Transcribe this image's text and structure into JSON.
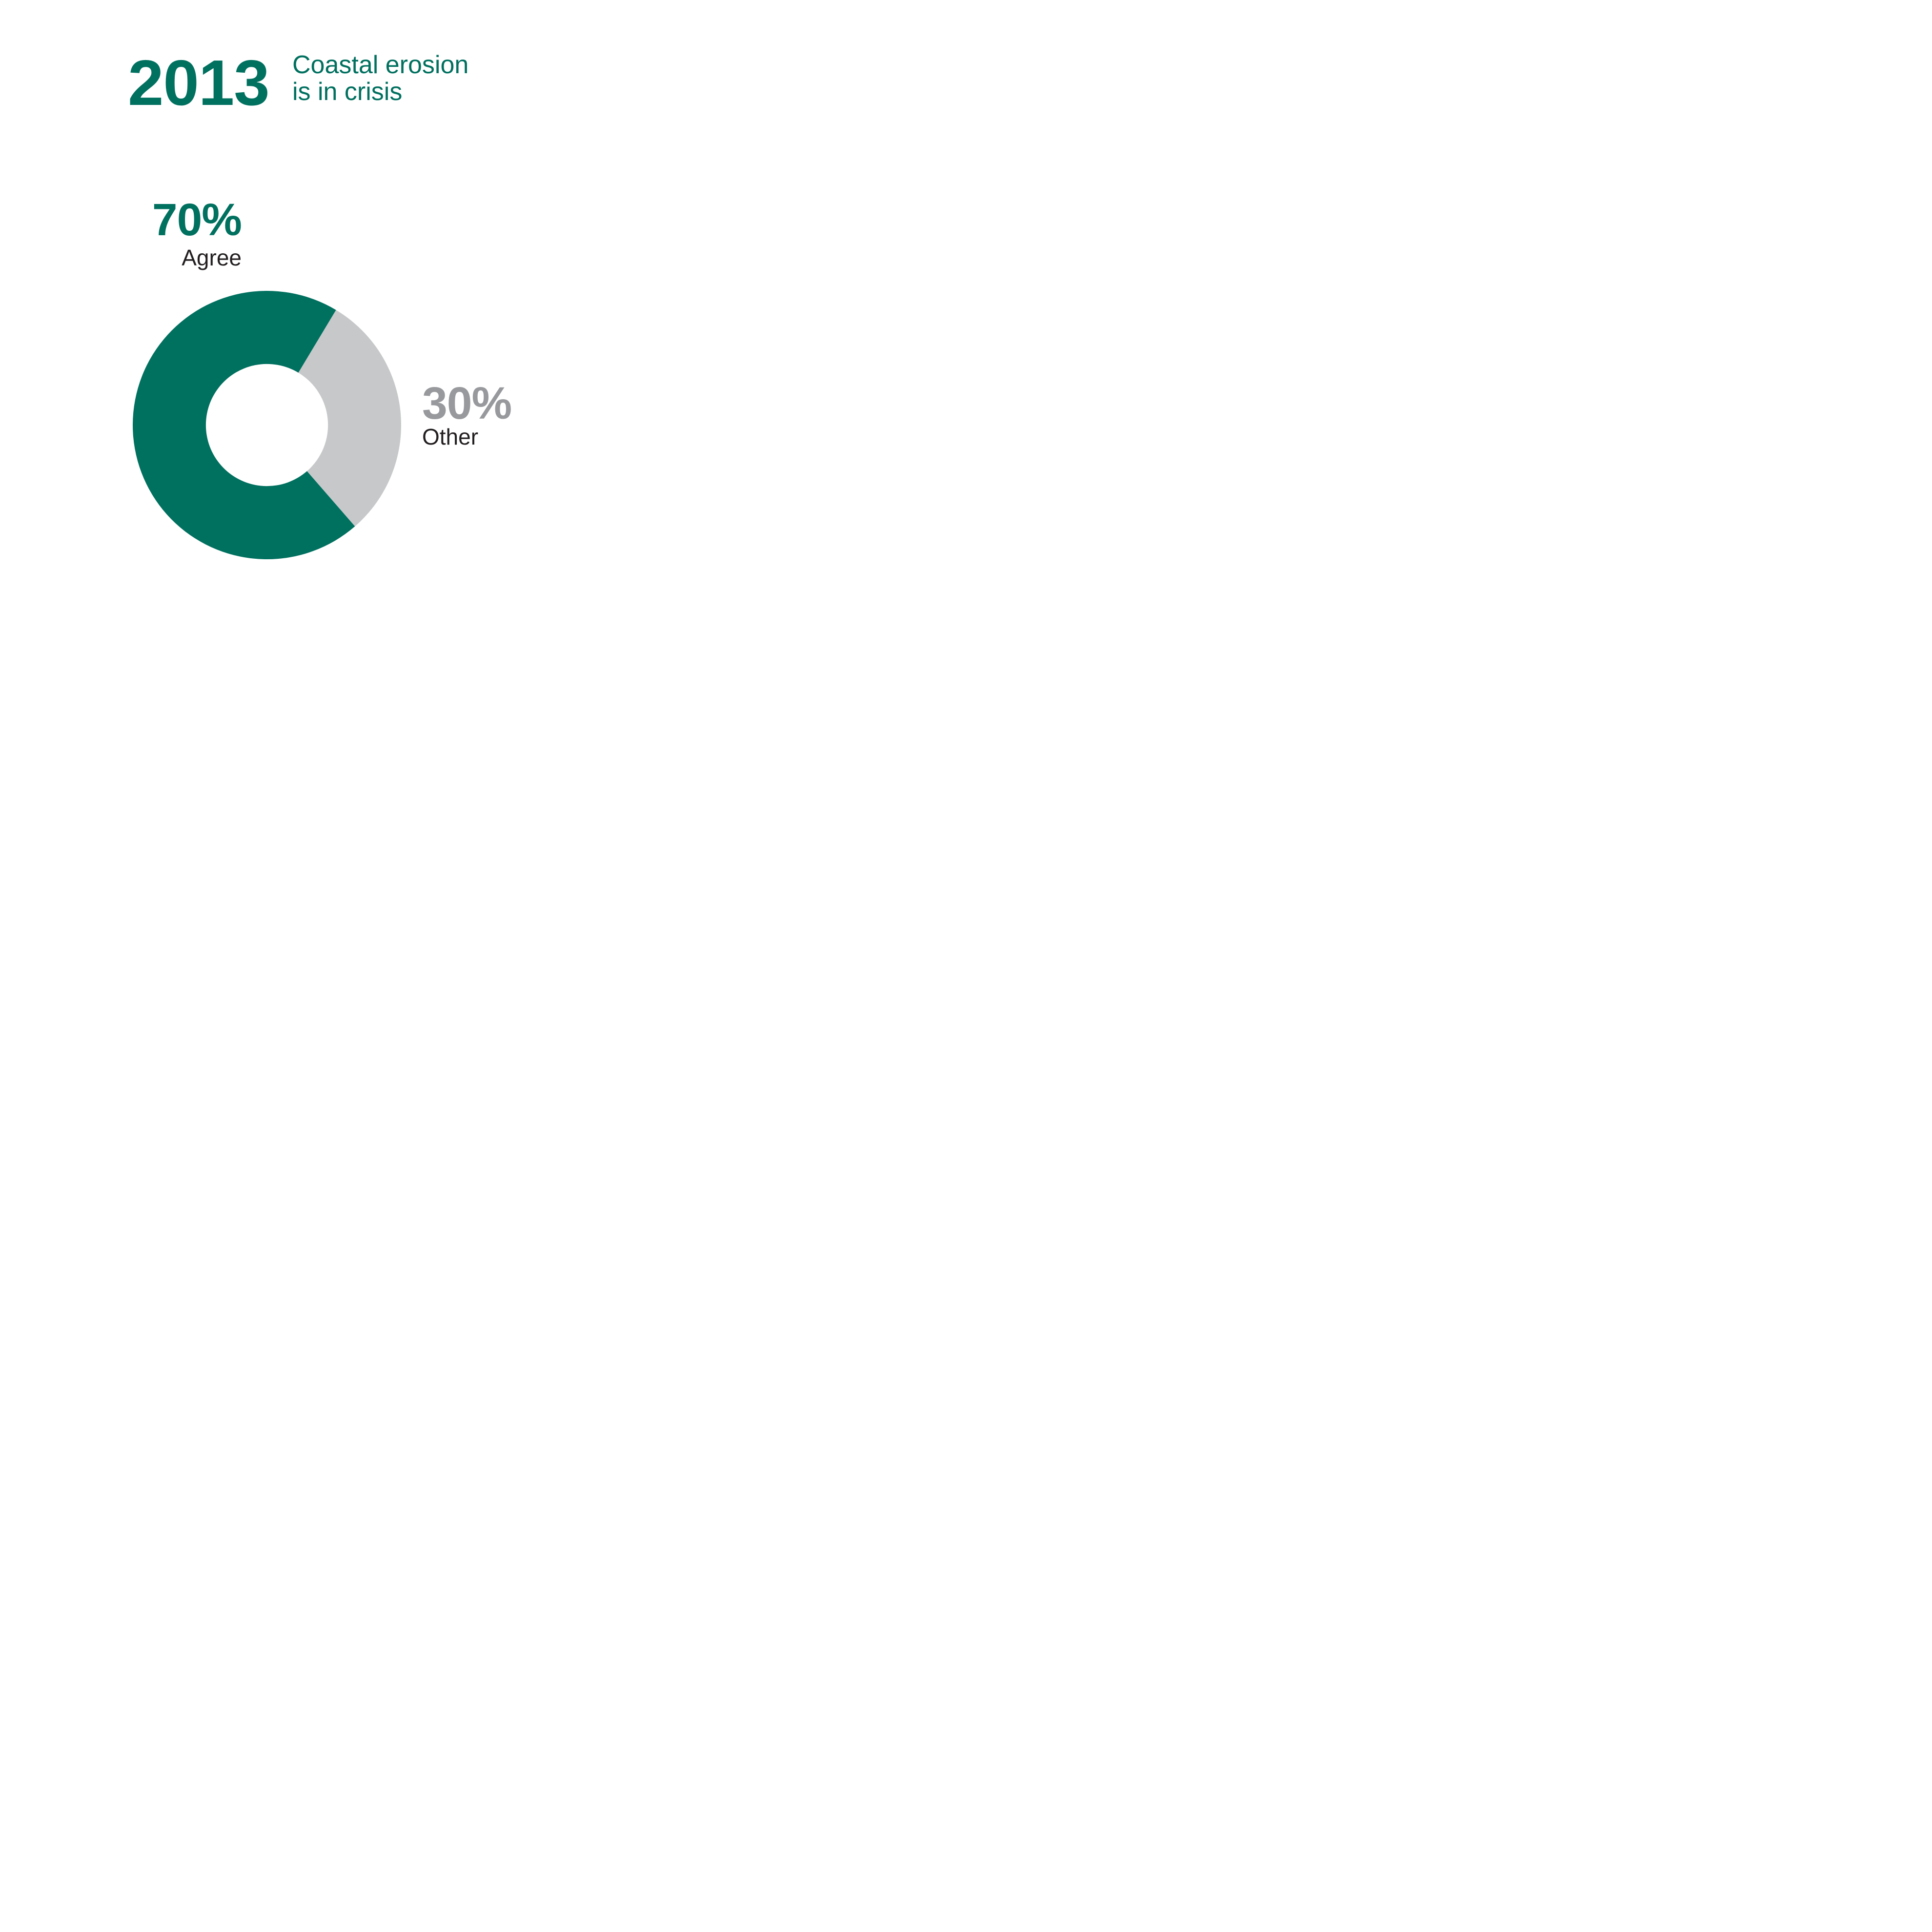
{
  "page": {
    "background": "#FFFFFF"
  },
  "colors": {
    "bg": "#FFFFFF",
    "teal": "#00705F",
    "slice-other": "#C7C8CA",
    "value-other": "#97999C",
    "ink": "#231F20"
  },
  "header": {
    "year": "2013",
    "subtitle_lines": [
      "Coastal erosion",
      "is in crisis"
    ]
  },
  "chart_data": {
    "type": "pie",
    "variant": "donut",
    "title": "2013 Coastal erosion is in crisis",
    "legend_position": "value-callouts-flanking-donut",
    "grid": false,
    "rotation_deg": 139,
    "inner_radius_ratio": 0.455,
    "slices": [
      {
        "label": "Agree",
        "value": 70,
        "unit": "%",
        "value_label": "70%",
        "color": "#00705F",
        "value_label_color": "#00705F"
      },
      {
        "label": "Other",
        "value": 30,
        "unit": "%",
        "value_label": "30%",
        "color": "#C7C8CA",
        "value_label_color": "#97999C"
      }
    ]
  }
}
